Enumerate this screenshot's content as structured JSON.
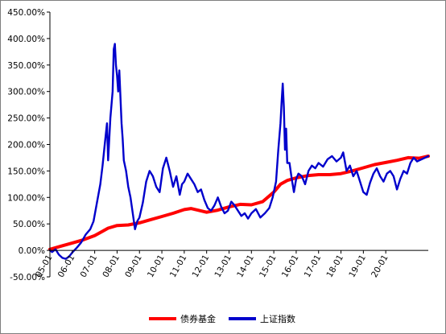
{
  "chart_data": {
    "type": "line",
    "x_ticks": [
      "05-01",
      "06-01",
      "07-01",
      "08-01",
      "09-01",
      "10-01",
      "11-01",
      "12-01",
      "13-01",
      "14-01",
      "15-01",
      "16-01",
      "17-01",
      "18-01",
      "19-01",
      "20-01"
    ],
    "ylim": [
      -50,
      450
    ],
    "y_tick_values": [
      -50,
      0,
      50,
      100,
      150,
      200,
      250,
      300,
      350,
      400,
      450
    ],
    "y_tick_labels": [
      "-50.00%",
      "0.00%",
      "50.00%",
      "100.00%",
      "150.00%",
      "200.00%",
      "250.00%",
      "300.00%",
      "350.00%",
      "400.00%",
      "450.00%"
    ],
    "xlim": [
      2005.0,
      2021.9
    ],
    "grid": false,
    "legend_position": "bottom",
    "series": [
      {
        "name": "债券基金",
        "color": "#ff0000",
        "x": [
          2005.0,
          2005.5,
          2006.0,
          2006.5,
          2007.0,
          2007.3,
          2007.6,
          2008.0,
          2008.5,
          2009.0,
          2009.5,
          2010.0,
          2010.5,
          2011.0,
          2011.3,
          2011.6,
          2012.0,
          2012.5,
          2013.0,
          2013.5,
          2014.0,
          2014.5,
          2015.0,
          2015.3,
          2015.6,
          2016.0,
          2016.5,
          2017.0,
          2017.5,
          2018.0,
          2018.5,
          2019.0,
          2019.5,
          2020.0,
          2020.5,
          2021.0,
          2021.5,
          2021.9
        ],
        "values": [
          2,
          8,
          14,
          20,
          28,
          35,
          42,
          47,
          48,
          52,
          58,
          64,
          70,
          77,
          79,
          76,
          72,
          76,
          82,
          87,
          86,
          92,
          110,
          125,
          132,
          137,
          141,
          143,
          143,
          145,
          150,
          156,
          162,
          166,
          170,
          175,
          174,
          178
        ]
      },
      {
        "name": "上证指数",
        "color": "#0000cc",
        "x": [
          2005.0,
          2005.1,
          2005.25,
          2005.4,
          2005.55,
          2005.7,
          2005.85,
          2006.0,
          2006.2,
          2006.4,
          2006.6,
          2006.8,
          2006.95,
          2007.1,
          2007.25,
          2007.35,
          2007.45,
          2007.55,
          2007.6,
          2007.7,
          2007.8,
          2007.85,
          2007.9,
          2007.95,
          2008.0,
          2008.05,
          2008.1,
          2008.15,
          2008.2,
          2008.25,
          2008.3,
          2008.4,
          2008.5,
          2008.6,
          2008.7,
          2008.8,
          2008.9,
          2009.0,
          2009.15,
          2009.3,
          2009.45,
          2009.6,
          2009.75,
          2009.9,
          2010.05,
          2010.2,
          2010.35,
          2010.5,
          2010.65,
          2010.8,
          2010.9,
          2011.0,
          2011.15,
          2011.3,
          2011.45,
          2011.6,
          2011.75,
          2011.9,
          2012.05,
          2012.2,
          2012.35,
          2012.5,
          2012.65,
          2012.8,
          2012.95,
          2013.1,
          2013.25,
          2013.4,
          2013.55,
          2013.7,
          2013.85,
          2014.0,
          2014.2,
          2014.4,
          2014.6,
          2014.8,
          2014.95,
          2015.1,
          2015.2,
          2015.3,
          2015.35,
          2015.4,
          2015.45,
          2015.5,
          2015.55,
          2015.6,
          2015.7,
          2015.8,
          2015.9,
          2016.0,
          2016.1,
          2016.25,
          2016.4,
          2016.55,
          2016.7,
          2016.85,
          2017.0,
          2017.2,
          2017.4,
          2017.6,
          2017.8,
          2018.0,
          2018.1,
          2018.25,
          2018.4,
          2018.55,
          2018.7,
          2018.85,
          2019.0,
          2019.15,
          2019.3,
          2019.45,
          2019.6,
          2019.75,
          2019.9,
          2020.05,
          2020.2,
          2020.35,
          2020.5,
          2020.65,
          2020.8,
          2020.95,
          2021.1,
          2021.25,
          2021.4,
          2021.6,
          2021.9
        ],
        "values": [
          0,
          -3,
          2,
          -8,
          -14,
          -16,
          -12,
          -4,
          5,
          15,
          30,
          40,
          55,
          90,
          125,
          160,
          200,
          240,
          170,
          250,
          300,
          380,
          390,
          350,
          330,
          300,
          340,
          290,
          240,
          210,
          170,
          150,
          120,
          100,
          70,
          40,
          55,
          62,
          90,
          130,
          150,
          140,
          120,
          110,
          155,
          175,
          150,
          120,
          140,
          105,
          125,
          130,
          145,
          135,
          125,
          110,
          115,
          95,
          80,
          75,
          85,
          100,
          82,
          70,
          75,
          92,
          85,
          75,
          65,
          70,
          60,
          70,
          78,
          62,
          70,
          80,
          100,
          130,
          190,
          240,
          280,
          315,
          270,
          190,
          230,
          165,
          165,
          135,
          110,
          135,
          145,
          140,
          125,
          150,
          160,
          155,
          165,
          158,
          172,
          178,
          168,
          175,
          185,
          150,
          160,
          140,
          150,
          130,
          110,
          105,
          128,
          145,
          155,
          140,
          130,
          145,
          150,
          140,
          115,
          135,
          150,
          145,
          165,
          175,
          168,
          172,
          178
        ]
      }
    ]
  }
}
